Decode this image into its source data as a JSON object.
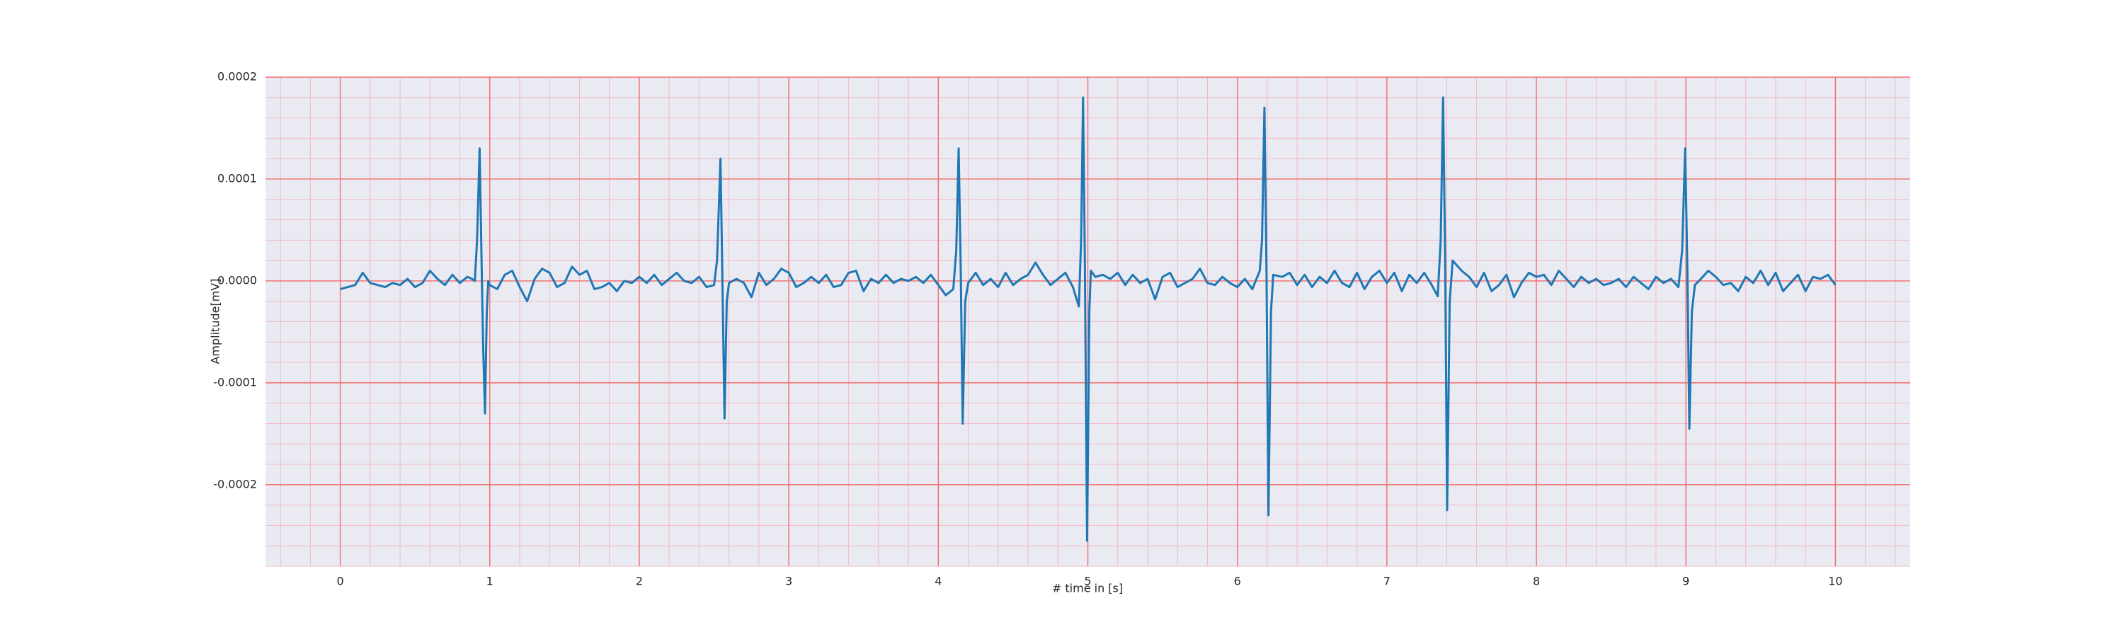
{
  "chart_data": {
    "type": "line",
    "xlabel": "# time in [s]",
    "ylabel": "Amplitude[mV]",
    "color": "#1f77b4",
    "xlim": [
      -0.5,
      10.5
    ],
    "ylim": [
      -0.00028,
      0.0002
    ],
    "xticks": [
      0,
      1,
      2,
      3,
      4,
      5,
      6,
      7,
      8,
      9,
      10
    ],
    "yticks": [
      -0.0002,
      -0.0001,
      {
        "value": 0,
        "label": "0.0000"
      },
      0.0001,
      0.0002
    ],
    "grid": true,
    "minor_grid": true,
    "minor_divisions": 5,
    "x": [
      0,
      0.05,
      0.1,
      0.15,
      0.2,
      0.25,
      0.3,
      0.35,
      0.4,
      0.45,
      0.5,
      0.55,
      0.6,
      0.65,
      0.7,
      0.75,
      0.8,
      0.85,
      0.88,
      0.9,
      0.915,
      0.932,
      0.945,
      0.955,
      0.968,
      0.98,
      0.99,
      1.0,
      1.05,
      1.1,
      1.15,
      1.2,
      1.25,
      1.3,
      1.35,
      1.4,
      1.45,
      1.5,
      1.55,
      1.6,
      1.65,
      1.7,
      1.75,
      1.8,
      1.85,
      1.9,
      1.95,
      2.0,
      2.05,
      2.1,
      2.15,
      2.2,
      2.25,
      2.3,
      2.35,
      2.4,
      2.45,
      2.5,
      2.52,
      2.543,
      2.555,
      2.57,
      2.585,
      2.6,
      2.65,
      2.7,
      2.75,
      2.8,
      2.85,
      2.9,
      2.95,
      3.0,
      3.05,
      3.1,
      3.15,
      3.2,
      3.25,
      3.3,
      3.35,
      3.4,
      3.45,
      3.5,
      3.55,
      3.6,
      3.65,
      3.7,
      3.75,
      3.8,
      3.85,
      3.9,
      3.95,
      4.0,
      4.05,
      4.1,
      4.12,
      4.136,
      4.15,
      4.163,
      4.18,
      4.2,
      4.25,
      4.3,
      4.35,
      4.4,
      4.45,
      4.5,
      4.55,
      4.6,
      4.65,
      4.7,
      4.75,
      4.8,
      4.85,
      4.9,
      4.94,
      4.955,
      4.968,
      4.98,
      4.995,
      5.01,
      5.02,
      5.05,
      5.1,
      5.15,
      5.2,
      5.25,
      5.3,
      5.35,
      5.4,
      5.45,
      5.5,
      5.55,
      5.6,
      5.65,
      5.7,
      5.75,
      5.8,
      5.85,
      5.9,
      5.95,
      6.0,
      6.05,
      6.1,
      6.15,
      6.165,
      6.181,
      6.195,
      6.208,
      6.225,
      6.24,
      6.3,
      6.35,
      6.4,
      6.45,
      6.5,
      6.55,
      6.6,
      6.65,
      6.7,
      6.75,
      6.8,
      6.85,
      6.9,
      6.95,
      7.0,
      7.05,
      7.1,
      7.15,
      7.2,
      7.25,
      7.3,
      7.34,
      7.36,
      7.376,
      7.39,
      7.403,
      7.42,
      7.44,
      7.5,
      7.55,
      7.6,
      7.65,
      7.7,
      7.75,
      7.8,
      7.85,
      7.9,
      7.95,
      8.0,
      8.05,
      8.1,
      8.15,
      8.2,
      8.25,
      8.3,
      8.35,
      8.4,
      8.45,
      8.5,
      8.55,
      8.6,
      8.65,
      8.7,
      8.75,
      8.8,
      8.85,
      8.9,
      8.95,
      8.975,
      8.995,
      9.01,
      9.023,
      9.04,
      9.06,
      9.1,
      9.15,
      9.2,
      9.25,
      9.3,
      9.35,
      9.4,
      9.45,
      9.5,
      9.55,
      9.6,
      9.65,
      9.7,
      9.75,
      9.8,
      9.85,
      9.9,
      9.95,
      10.0
    ],
    "values": [
      -8e-06,
      -6e-06,
      -4e-06,
      8e-06,
      -2e-06,
      -4e-06,
      -6e-06,
      -2e-06,
      -4e-06,
      2e-06,
      -6e-06,
      -2e-06,
      1e-05,
      2e-06,
      -4e-06,
      6e-06,
      -2e-06,
      4e-06,
      2e-06,
      0,
      4e-05,
      0.00013,
      2e-05,
      -6e-05,
      -0.00013,
      -3e-05,
      0,
      -4e-06,
      -8e-06,
      6e-06,
      1e-05,
      -6e-06,
      -2e-05,
      2e-06,
      1.2e-05,
      8e-06,
      -6e-06,
      -2e-06,
      1.4e-05,
      6e-06,
      1e-05,
      -8e-06,
      -6e-06,
      -2e-06,
      -1e-05,
      0,
      -2e-06,
      4e-06,
      -2e-06,
      6e-06,
      -4e-06,
      2e-06,
      8e-06,
      0,
      -2e-06,
      4e-06,
      -6e-06,
      -4e-06,
      2e-05,
      0.00012,
      1e-05,
      -0.000135,
      -2e-05,
      -2e-06,
      2e-06,
      -2e-06,
      -1.6e-05,
      8e-06,
      -4e-06,
      2e-06,
      1.2e-05,
      8e-06,
      -6e-06,
      -2e-06,
      4e-06,
      -2e-06,
      6e-06,
      -6e-06,
      -4e-06,
      8e-06,
      1e-05,
      -1e-05,
      2e-06,
      -2e-06,
      6e-06,
      -2e-06,
      2e-06,
      0,
      4e-06,
      -2e-06,
      6e-06,
      -4e-06,
      -1.4e-05,
      -8e-06,
      3e-05,
      0.00013,
      1e-05,
      -0.00014,
      -2e-05,
      -2e-06,
      8e-06,
      -4e-06,
      2e-06,
      -6e-06,
      8e-06,
      -4e-06,
      2e-06,
      6e-06,
      1.8e-05,
      6e-06,
      -4e-06,
      2e-06,
      8e-06,
      -6e-06,
      -2.5e-05,
      4e-05,
      0.00018,
      2e-05,
      -0.000255,
      -3e-05,
      1e-05,
      4e-06,
      6e-06,
      2e-06,
      8e-06,
      -4e-06,
      6e-06,
      -2e-06,
      2e-06,
      -1.8e-05,
      4e-06,
      8e-06,
      -6e-06,
      -2e-06,
      2e-06,
      1.2e-05,
      -2e-06,
      -4e-06,
      4e-06,
      -2e-06,
      -6e-06,
      2e-06,
      -8e-06,
      1e-05,
      4e-05,
      0.00017,
      1e-05,
      -0.00023,
      -3e-05,
      6e-06,
      4e-06,
      8e-06,
      -4e-06,
      6e-06,
      -6e-06,
      4e-06,
      -2e-06,
      1e-05,
      -2e-06,
      -6e-06,
      8e-06,
      -8e-06,
      4e-06,
      1e-05,
      -2e-06,
      8e-06,
      -1e-05,
      6e-06,
      -2e-06,
      8e-06,
      -4e-06,
      -1.5e-05,
      4e-05,
      0.00018,
      2e-05,
      -0.000225,
      -2e-05,
      2e-05,
      1e-05,
      4e-06,
      -6e-06,
      8e-06,
      -1e-05,
      -4e-06,
      6e-06,
      -1.6e-05,
      -2e-06,
      8e-06,
      4e-06,
      6e-06,
      -4e-06,
      1e-05,
      2e-06,
      -6e-06,
      4e-06,
      -2e-06,
      2e-06,
      -4e-06,
      -2e-06,
      2e-06,
      -6e-06,
      4e-06,
      -2e-06,
      -8e-06,
      4e-06,
      -2e-06,
      2e-06,
      -6e-06,
      3e-05,
      0.00013,
      1e-05,
      -0.000145,
      -3e-05,
      -4e-06,
      2e-06,
      1e-05,
      4e-06,
      -4e-06,
      -2e-06,
      -1e-05,
      4e-06,
      -2e-06,
      1e-05,
      -4e-06,
      8e-06,
      -1e-05,
      -2e-06,
      6e-06,
      -1e-05,
      4e-06,
      2e-06,
      6e-06,
      -4e-06
    ]
  }
}
